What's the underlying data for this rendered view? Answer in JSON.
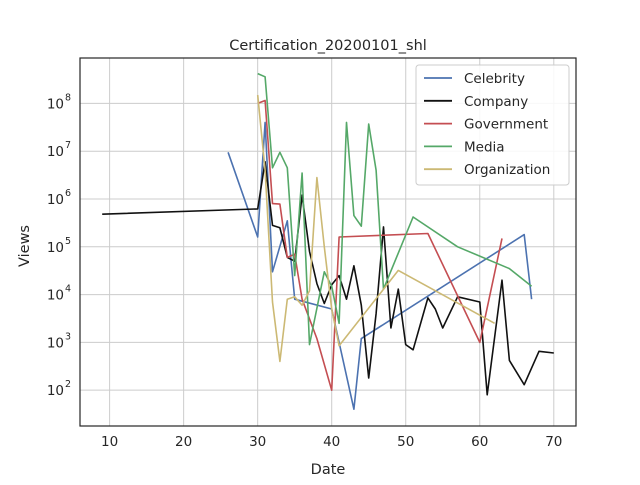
{
  "chart_data": {
    "type": "line",
    "title": "Certification_20200101_shl",
    "xlabel": "Date",
    "ylabel": "Views",
    "xlim": [
      6,
      73
    ],
    "ylim_log10": [
      1.25,
      8.95
    ],
    "yscale": "log",
    "grid": true,
    "legend_position": "top-right",
    "x_ticks": [
      10,
      20,
      30,
      40,
      50,
      60,
      70
    ],
    "x_tick_labels": [
      "10",
      "20",
      "30",
      "40",
      "50",
      "60",
      "70"
    ],
    "y_ticks_log10": [
      2,
      3,
      4,
      5,
      6,
      7,
      8
    ],
    "y_tick_mantissa": "10",
    "y_tick_exponents": [
      "2",
      "3",
      "4",
      "5",
      "6",
      "7",
      "8"
    ],
    "series": [
      {
        "name": "Celebrity",
        "color": "#4c72b0",
        "x": [
          26,
          30,
          31,
          32,
          34,
          35,
          40,
          43,
          44,
          66,
          67
        ],
        "y": [
          9500000,
          160000,
          40000000,
          30000,
          350000,
          8000,
          5000,
          40,
          1200,
          180000,
          8000
        ]
      },
      {
        "name": "Company",
        "color": "#111111",
        "x": [
          9,
          30,
          31,
          32,
          33,
          34,
          35,
          36,
          37,
          38,
          39,
          40,
          41,
          42,
          43,
          44,
          45,
          46,
          47,
          48,
          49,
          50,
          51,
          53,
          54,
          55,
          57,
          60,
          61,
          63,
          64,
          66,
          68,
          70
        ],
        "y": [
          480000,
          620000,
          6000000,
          280000,
          250000,
          60000,
          50000,
          1200000,
          80000,
          17000,
          6500,
          16000,
          25000,
          8000,
          40000,
          6000,
          180,
          4000,
          260000,
          2000,
          13000,
          900,
          700,
          8500,
          5000,
          2000,
          9000,
          7000,
          80,
          20000,
          420,
          130,
          650,
          600
        ]
      },
      {
        "name": "Government",
        "color": "#c44e52",
        "x": [
          30,
          31,
          32,
          33,
          34,
          35,
          36,
          38,
          40,
          41,
          53,
          60,
          63
        ],
        "y": [
          100000000,
          115000000,
          800000,
          780000,
          60000,
          70000,
          8000,
          1200,
          100,
          160000,
          190000,
          1000,
          150000
        ]
      },
      {
        "name": "Media",
        "color": "#55a868",
        "x": [
          30,
          31,
          32,
          33,
          34,
          35,
          36,
          37,
          39,
          40,
          41,
          42,
          43,
          44,
          45,
          46,
          47,
          51,
          57,
          64,
          67
        ],
        "y": [
          420000000,
          360000000,
          4500000,
          9500000,
          4500000,
          25000,
          3500000,
          900,
          30000,
          15000,
          2500,
          40000000,
          450000,
          270000,
          37000000,
          4000000,
          13000,
          420000,
          100000,
          35000,
          15000
        ]
      },
      {
        "name": "Organization",
        "color": "#ccb974",
        "x": [
          30,
          31,
          32,
          33,
          34,
          35,
          36,
          37,
          38,
          39,
          40,
          41,
          49,
          62
        ],
        "y": [
          150000000,
          4000000,
          7000,
          400,
          8000,
          9000,
          6000,
          12000,
          2800000,
          100000,
          5000,
          850,
          32000,
          2500
        ]
      }
    ]
  }
}
